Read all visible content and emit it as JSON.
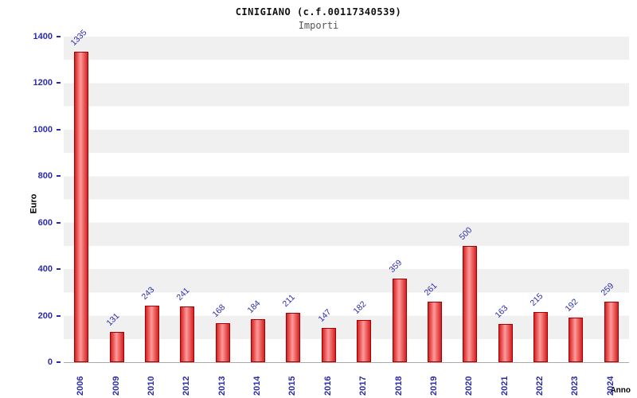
{
  "chart_data": {
    "type": "bar",
    "title": "CINIGIANO (c.f.00117340539)",
    "subtitle": "Importi",
    "ylabel": "Euro",
    "xlabel": "Anno",
    "ylim": [
      0,
      1400
    ],
    "yticks": [
      0,
      200,
      400,
      600,
      800,
      1000,
      1200,
      1400
    ],
    "categories": [
      "2006",
      "2009",
      "2010",
      "2012",
      "2013",
      "2014",
      "2015",
      "2016",
      "2017",
      "2018",
      "2019",
      "2020",
      "2021",
      "2022",
      "2023",
      "2024"
    ],
    "values": [
      1335,
      131,
      243,
      241,
      168,
      184,
      211,
      147,
      182,
      359,
      261,
      500,
      163,
      215,
      192,
      259
    ],
    "grid": "horizontal-bands",
    "legend": "none",
    "colors": {
      "bar": "#d42020",
      "bar_highlight": "#ff9a9a",
      "bar_border": "#a80000",
      "tick_label": "#2b2baa",
      "band": "#f0f0f0",
      "axis_title": "#000000"
    }
  }
}
